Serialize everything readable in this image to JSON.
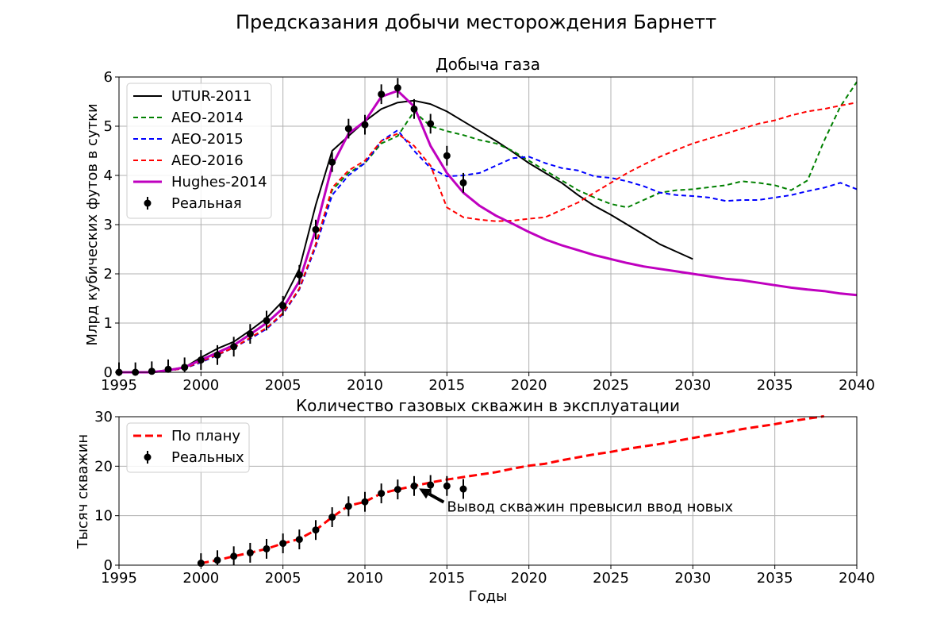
{
  "figure_title": "Предсказания добычи месторождения Барнетт",
  "colors": {
    "utur": "#000000",
    "aeo2014": "#008000",
    "aeo2015": "#0000ff",
    "aeo2016": "#ff0000",
    "hughes": "#bf00bf",
    "actual": "#000000",
    "planned": "#ff0000",
    "grid": "#b0b0b0"
  },
  "chart_data": [
    {
      "type": "line",
      "title": "Добыча газа",
      "xlabel": "",
      "ylabel": "Млрд кубических футов в сутки",
      "xlim": [
        1995,
        2040
      ],
      "ylim": [
        0,
        6
      ],
      "xticks": [
        1995,
        2000,
        2005,
        2010,
        2015,
        2020,
        2025,
        2030,
        2035,
        2040
      ],
      "yticks": [
        0,
        1,
        2,
        3,
        4,
        5,
        6
      ],
      "grid": true,
      "legend": "top-left",
      "series": [
        {
          "name": "UTUR-2011",
          "color": "#000000",
          "dash": "solid",
          "width": 2,
          "x": [
            1995,
            1996,
            1997,
            1998,
            1999,
            2000,
            2001,
            2002,
            2003,
            2004,
            2005,
            2006,
            2007,
            2008,
            2009,
            2010,
            2011,
            2012,
            2013,
            2014,
            2015,
            2016,
            2017,
            2018,
            2019,
            2020,
            2021,
            2022,
            2023,
            2024,
            2025,
            2026,
            2027,
            2028,
            2029,
            2030
          ],
          "y": [
            0,
            0,
            0,
            0.05,
            0.1,
            0.3,
            0.48,
            0.62,
            0.85,
            1.1,
            1.45,
            2.1,
            3.4,
            4.5,
            4.8,
            5.1,
            5.35,
            5.48,
            5.52,
            5.45,
            5.3,
            5.1,
            4.9,
            4.7,
            4.48,
            4.25,
            4.05,
            3.85,
            3.6,
            3.38,
            3.2,
            3.0,
            2.8,
            2.6,
            2.45,
            2.3
          ]
        },
        {
          "name": "AEO-2014",
          "color": "#008000",
          "dash": "dashed",
          "width": 2,
          "x": [
            1995,
            1996,
            1997,
            1998,
            1999,
            2000,
            2001,
            2002,
            2003,
            2004,
            2005,
            2006,
            2007,
            2008,
            2009,
            2010,
            2011,
            2012,
            2013,
            2014,
            2015,
            2016,
            2017,
            2018,
            2019,
            2020,
            2021,
            2022,
            2023,
            2024,
            2025,
            2026,
            2027,
            2028,
            2029,
            2030,
            2031,
            2032,
            2033,
            2034,
            2035,
            2036,
            2037,
            2038,
            2039,
            2040
          ],
          "y": [
            0,
            0,
            0,
            0.03,
            0.08,
            0.2,
            0.35,
            0.5,
            0.7,
            0.9,
            1.2,
            1.7,
            2.6,
            3.7,
            4.05,
            4.25,
            4.65,
            4.8,
            5.3,
            5.0,
            4.9,
            4.82,
            4.72,
            4.65,
            4.5,
            4.3,
            4.1,
            3.9,
            3.7,
            3.55,
            3.42,
            3.35,
            3.5,
            3.65,
            3.7,
            3.72,
            3.76,
            3.8,
            3.88,
            3.85,
            3.8,
            3.7,
            3.9,
            4.7,
            5.4,
            5.9
          ]
        },
        {
          "name": "AEO-2015",
          "color": "#0000ff",
          "dash": "dashed",
          "width": 2,
          "x": [
            1995,
            1996,
            1997,
            1998,
            1999,
            2000,
            2001,
            2002,
            2003,
            2004,
            2005,
            2006,
            2007,
            2008,
            2009,
            2010,
            2011,
            2012,
            2013,
            2014,
            2015,
            2016,
            2017,
            2018,
            2019,
            2020,
            2021,
            2022,
            2023,
            2024,
            2025,
            2026,
            2027,
            2028,
            2029,
            2030,
            2031,
            2032,
            2033,
            2034,
            2035,
            2036,
            2037,
            2038,
            2039,
            2040
          ],
          "y": [
            0,
            0,
            0,
            0.03,
            0.08,
            0.2,
            0.35,
            0.5,
            0.68,
            0.88,
            1.18,
            1.68,
            2.55,
            3.6,
            4.0,
            4.25,
            4.7,
            4.92,
            4.5,
            4.15,
            3.98,
            4.0,
            4.05,
            4.2,
            4.35,
            4.38,
            4.25,
            4.15,
            4.1,
            3.98,
            3.95,
            3.88,
            3.78,
            3.65,
            3.6,
            3.58,
            3.55,
            3.48,
            3.5,
            3.5,
            3.55,
            3.6,
            3.68,
            3.75,
            3.85,
            3.72
          ]
        },
        {
          "name": "AEO-2016",
          "color": "#ff0000",
          "dash": "dashed",
          "width": 2,
          "x": [
            1995,
            1996,
            1997,
            1998,
            1999,
            2000,
            2001,
            2002,
            2003,
            2004,
            2005,
            2006,
            2007,
            2008,
            2009,
            2010,
            2011,
            2012,
            2013,
            2014,
            2015,
            2016,
            2017,
            2018,
            2019,
            2020,
            2021,
            2022,
            2023,
            2024,
            2025,
            2026,
            2027,
            2028,
            2029,
            2030,
            2031,
            2032,
            2033,
            2034,
            2035,
            2036,
            2037,
            2038,
            2039,
            2040
          ],
          "y": [
            0,
            0,
            0,
            0.03,
            0.08,
            0.22,
            0.36,
            0.5,
            0.7,
            0.9,
            1.2,
            1.7,
            2.6,
            3.75,
            4.1,
            4.3,
            4.7,
            4.85,
            4.6,
            4.2,
            3.35,
            3.15,
            3.1,
            3.07,
            3.08,
            3.12,
            3.15,
            3.3,
            3.45,
            3.65,
            3.85,
            4.05,
            4.22,
            4.38,
            4.52,
            4.65,
            4.75,
            4.85,
            4.95,
            5.05,
            5.12,
            5.22,
            5.3,
            5.35,
            5.42,
            5.48
          ]
        },
        {
          "name": "Hughes-2014",
          "color": "#bf00bf",
          "dash": "solid",
          "width": 3,
          "x": [
            1995,
            1996,
            1997,
            1998,
            1999,
            2000,
            2001,
            2002,
            2003,
            2004,
            2005,
            2006,
            2007,
            2008,
            2009,
            2010,
            2011,
            2012,
            2013,
            2014,
            2015,
            2016,
            2017,
            2018,
            2019,
            2020,
            2021,
            2022,
            2023,
            2024,
            2025,
            2026,
            2027,
            2028,
            2029,
            2030,
            2031,
            2032,
            2033,
            2034,
            2035,
            2036,
            2037,
            2038,
            2039,
            2040
          ],
          "y": [
            0,
            0,
            0,
            0.04,
            0.1,
            0.25,
            0.4,
            0.55,
            0.77,
            1.0,
            1.3,
            1.85,
            2.9,
            4.2,
            4.85,
            5.1,
            5.6,
            5.72,
            5.4,
            4.6,
            4.05,
            3.65,
            3.38,
            3.18,
            3.02,
            2.85,
            2.7,
            2.58,
            2.48,
            2.38,
            2.3,
            2.22,
            2.15,
            2.1,
            2.05,
            2.0,
            1.95,
            1.9,
            1.87,
            1.82,
            1.77,
            1.72,
            1.68,
            1.65,
            1.6,
            1.57
          ]
        },
        {
          "name": "Реальная",
          "color": "#000000",
          "type": "errorbar",
          "x": [
            1995,
            1996,
            1997,
            1998,
            1999,
            2000,
            2001,
            2002,
            2003,
            2004,
            2005,
            2006,
            2007,
            2008,
            2009,
            2010,
            2011,
            2012,
            2013,
            2014,
            2015,
            2016
          ],
          "y": [
            0,
            0.0,
            0.02,
            0.06,
            0.1,
            0.25,
            0.35,
            0.52,
            0.78,
            1.05,
            1.35,
            1.98,
            2.9,
            4.27,
            4.95,
            5.03,
            5.65,
            5.78,
            5.35,
            5.05,
            4.4,
            3.85
          ],
          "yerr": 0.2
        }
      ]
    },
    {
      "type": "line",
      "title": "Количество газовых скважин в эксплуатации",
      "xlabel": "Годы",
      "ylabel": "Тысяч скважин",
      "xlim": [
        1995,
        2040
      ],
      "ylim": [
        0,
        30
      ],
      "xticks": [
        1995,
        2000,
        2005,
        2010,
        2015,
        2020,
        2025,
        2030,
        2035,
        2040
      ],
      "yticks": [
        0,
        10,
        20,
        30
      ],
      "grid": true,
      "legend": "top-left",
      "series": [
        {
          "name": "По плану",
          "color": "#ff0000",
          "dash": "dashed",
          "width": 3,
          "x": [
            2000,
            2001,
            2002,
            2003,
            2004,
            2005,
            2006,
            2007,
            2008,
            2009,
            2010,
            2011,
            2012,
            2013,
            2014,
            2015,
            2016,
            2017,
            2018,
            2019,
            2020,
            2021,
            2022,
            2023,
            2024,
            2025,
            2026,
            2027,
            2028,
            2029,
            2030,
            2031,
            2032,
            2033,
            2034,
            2035,
            2036,
            2037,
            2038
          ],
          "y": [
            0.4,
            1.0,
            1.8,
            2.5,
            3.3,
            4.4,
            5.3,
            7.1,
            9.7,
            12.0,
            12.8,
            14.5,
            15.3,
            16.0,
            16.7,
            17.3,
            17.8,
            18.3,
            18.8,
            19.5,
            20.1,
            20.5,
            21.2,
            21.8,
            22.4,
            22.9,
            23.5,
            24.0,
            24.5,
            25.1,
            25.7,
            26.3,
            26.8,
            27.5,
            28.0,
            28.5,
            29.1,
            29.6,
            30.1
          ]
        },
        {
          "name": "Реальных",
          "color": "#000000",
          "type": "errorbar",
          "x": [
            2000,
            2001,
            2002,
            2003,
            2004,
            2005,
            2006,
            2007,
            2008,
            2009,
            2010,
            2011,
            2012,
            2013,
            2014,
            2015,
            2016
          ],
          "y": [
            0.4,
            1.0,
            1.8,
            2.5,
            3.3,
            4.4,
            5.2,
            7.1,
            9.7,
            11.9,
            12.8,
            14.5,
            15.3,
            16.0,
            16.2,
            16.0,
            15.4
          ],
          "yerr": 2
        }
      ],
      "annotation": {
        "text": "Вывод скважин превысил ввод новых",
        "target_x": 2013.3,
        "target_y": 15.5,
        "text_x": 2015,
        "text_y": 10.8
      }
    }
  ]
}
